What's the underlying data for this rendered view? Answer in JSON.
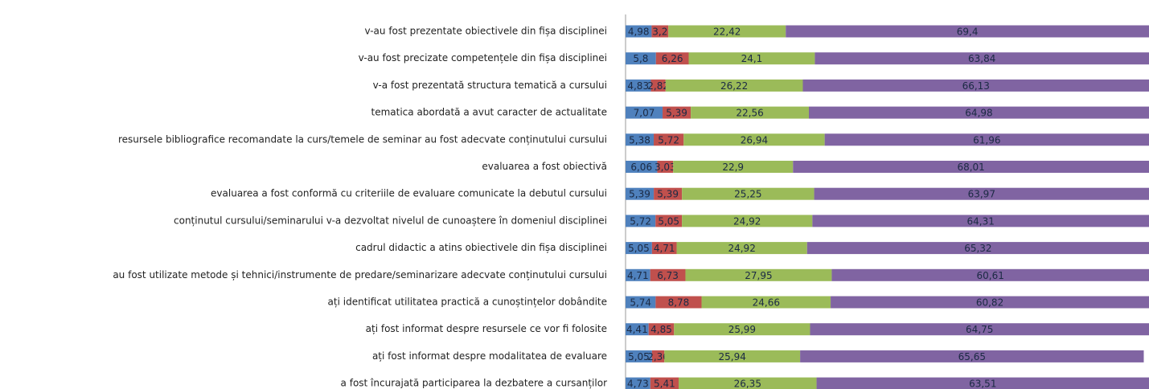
{
  "chart_data": {
    "type": "stacked_barh",
    "categories": [
      "v-au fost prezentate obiectivele din fișa disciplinei",
      "v-au fost precizate competențele din fișa disciplinei",
      "v-a fost prezentată structura tematică a cursului",
      "tematica abordată a avut caracter de actualitate",
      "resursele bibliografice recomandate la curs/temele de seminar au fost adecvate conținutului cursului",
      "evaluarea a fost obiectivă",
      "evaluarea a fost conformă cu criteriile de evaluare comunicate la debutul cursului",
      "conținutul cursului/seminarului v-a dezvoltat nivelul de cunoaștere în domeniul disciplinei",
      "cadrul didactic a atins obiectivele din fișa disciplinei",
      "au fost utilizate metode și tehnici/instrumente de predare/seminarizare adecvate conținutului cursului",
      "ați identificat utilitatea practică a cunoștințelor dobândite",
      "ați fost informat despre resursele ce vor fi folosite",
      "ați fost informat despre modalitatea de evaluare",
      "a fost încurajată participarea la dezbatere a cursanților"
    ],
    "series": [
      {
        "color": "#4f81bd",
        "values": [
          4.98,
          5.8,
          4.83,
          7.07,
          5.38,
          6.06,
          5.39,
          5.72,
          5.05,
          4.71,
          5.74,
          4.41,
          5.05,
          4.73
        ],
        "value_labels": [
          "4,98",
          "5,8",
          "4,83",
          "7,07",
          "5,38",
          "6,06",
          "5,39",
          "5,72",
          "5,05",
          "4,71",
          "5,74",
          "4,41",
          "5,05",
          "4,73"
        ]
      },
      {
        "color": "#c0504d",
        "values": [
          3.2,
          6.26,
          2.82,
          5.39,
          5.72,
          3.03,
          5.39,
          5.05,
          4.71,
          6.73,
          8.78,
          4.85,
          2.36,
          5.41
        ],
        "value_labels": [
          "3,2",
          "6,26",
          "2,82",
          "5,39",
          "5,72",
          "3,03",
          "5,39",
          "5,05",
          "4,71",
          "6,73",
          "8,78",
          "4,85",
          "2,36",
          "5,41"
        ]
      },
      {
        "color": "#9bbb59",
        "values": [
          22.42,
          24.1,
          26.22,
          22.56,
          26.94,
          22.9,
          25.25,
          24.92,
          24.92,
          27.95,
          24.66,
          25.99,
          25.94,
          26.35
        ],
        "value_labels": [
          "22,42",
          "24,1",
          "26,22",
          "22,56",
          "26,94",
          "22,9",
          "25,25",
          "24,92",
          "24,92",
          "27,95",
          "24,66",
          "25,99",
          "25,94",
          "26,35"
        ]
      },
      {
        "color": "#8064a2",
        "values": [
          69.4,
          63.84,
          66.13,
          64.98,
          61.96,
          68.01,
          63.97,
          64.31,
          65.32,
          60.61,
          60.82,
          64.75,
          65.65,
          63.51
        ],
        "value_labels": [
          "69,4",
          "63,84",
          "66,13",
          "64,98",
          "61,96",
          "68,01",
          "63,97",
          "64,31",
          "65,32",
          "60,61",
          "60,82",
          "64,75",
          "65,65",
          "63,51"
        ]
      }
    ],
    "xlim": [
      0,
      100
    ]
  }
}
